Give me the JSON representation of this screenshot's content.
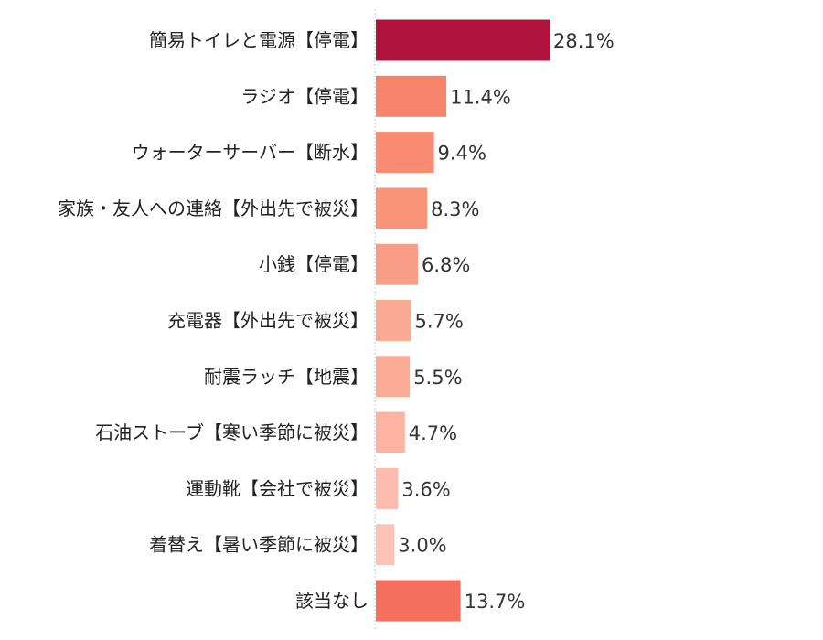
{
  "chart_data": {
    "type": "bar",
    "orientation": "horizontal",
    "title": "",
    "xlabel": "",
    "ylabel": "",
    "value_suffix": "%",
    "xlim": [
      0,
      30
    ],
    "grid": false,
    "legend": "none",
    "categories": [
      "簡易トイレと電源【停電】",
      "ラジオ【停電】",
      "ウォーターサーバー【断水】",
      "家族・友人への連絡【外出先で被災】",
      "小銭【停電】",
      "充電器【外出先で被災】",
      "耐震ラッチ【地震】",
      "石油ストーブ【寒い季節に被災】",
      "運動靴【会社で被災】",
      "着替え【暑い季節に被災】",
      "該当なし"
    ],
    "values": [
      28.1,
      11.4,
      9.4,
      8.3,
      6.8,
      5.7,
      5.5,
      4.7,
      3.6,
      3.0,
      13.7
    ],
    "value_labels": [
      "28.1%",
      "11.4%",
      "9.4%",
      "8.3%",
      "6.8%",
      "5.7%",
      "5.5%",
      "4.7%",
      "3.6%",
      "3.0%",
      "13.7%"
    ],
    "colors": [
      "#b0143c",
      "#f7836a",
      "#f88b72",
      "#f99479",
      "#fa9d86",
      "#fbaa94",
      "#fbab96",
      "#fcb3a2",
      "#fdbcad",
      "#fdc3b6",
      "#f66f5e"
    ]
  }
}
